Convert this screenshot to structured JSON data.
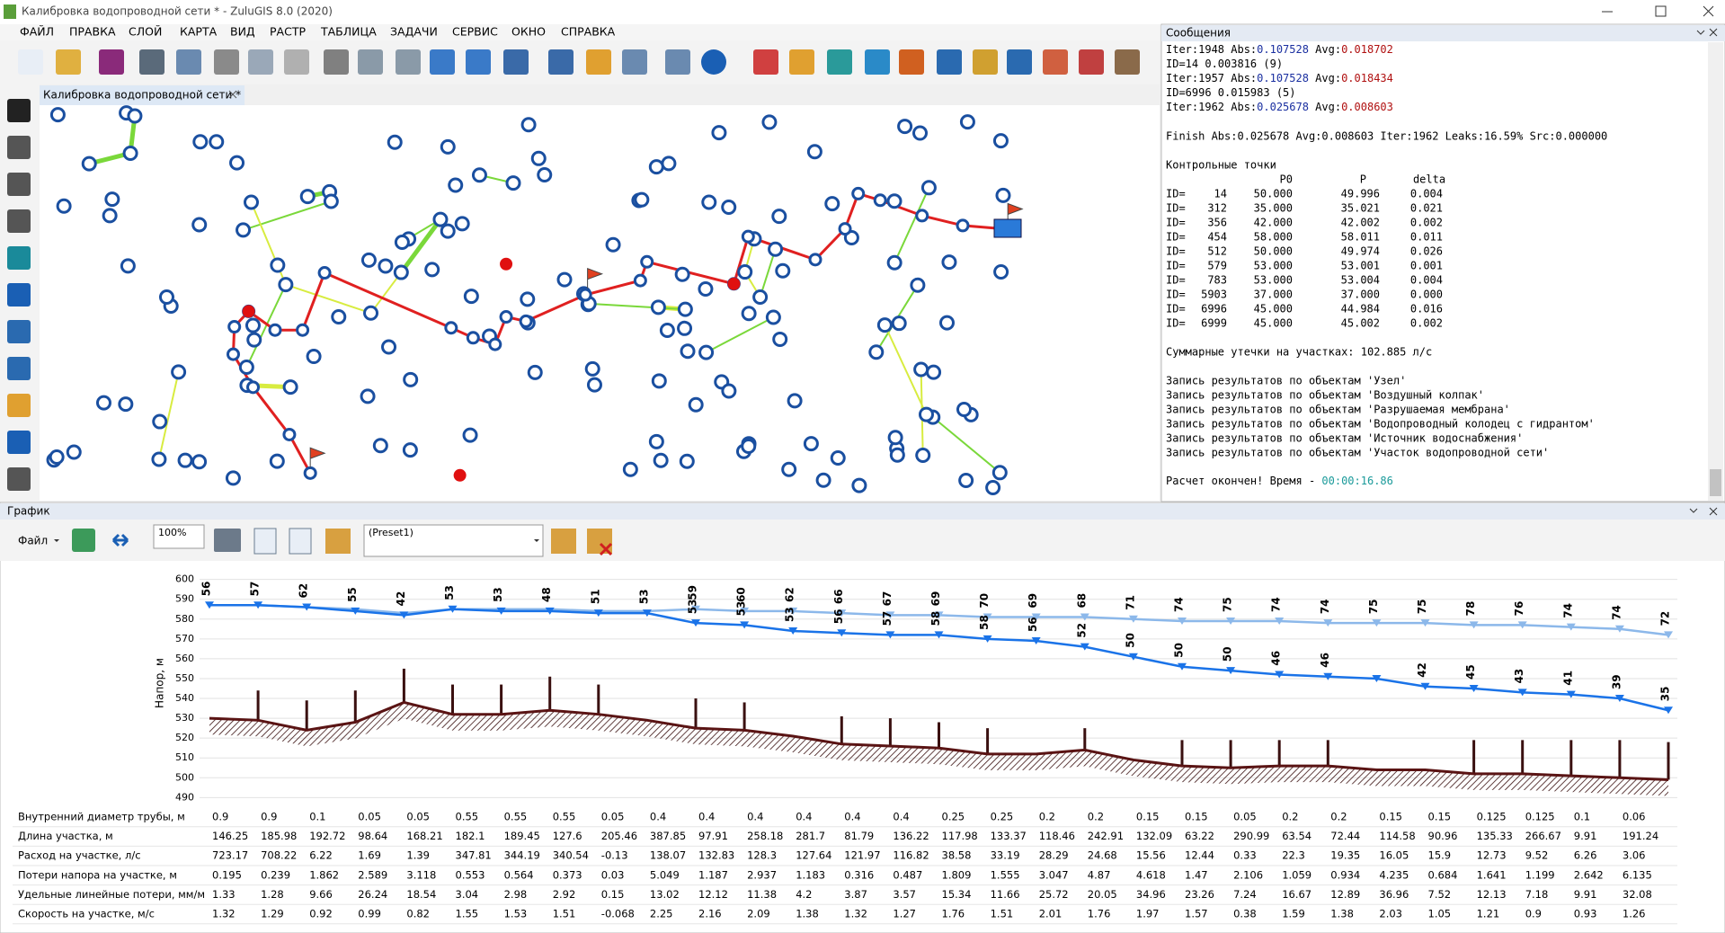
{
  "window": {
    "title": "Калибровка водопроводной сети * - ZuluGIS 8.0 (2020)"
  },
  "menu": [
    "ФАЙЛ",
    "ПРАВКА",
    "СЛОЙ",
    "КАРТА",
    "ВИД",
    "РАСТР",
    "ТАБЛИЦА",
    "ЗАДАЧИ",
    "СЕРВИС",
    "ОКНО",
    "СПРАВКА"
  ],
  "tab_title": "Калибровка водопроводной сети *",
  "messages": {
    "title": "Сообщения",
    "iterations": [
      [
        {
          "t": "Iter:1948 Abs:"
        },
        {
          "t": "0.107528",
          "c": "#1a2fa0"
        },
        {
          "t": " Avg:"
        },
        {
          "t": "0.018702",
          "c": "#b01010"
        }
      ],
      [
        {
          "t": "ID=14 0.003816 (9)"
        }
      ],
      [
        {
          "t": "Iter:1957 Abs:"
        },
        {
          "t": "0.107528",
          "c": "#1a2fa0"
        },
        {
          "t": " Avg:"
        },
        {
          "t": "0.018434",
          "c": "#b01010"
        }
      ],
      [
        {
          "t": "ID=6996 0.015983 (5)"
        }
      ],
      [
        {
          "t": "Iter:1962 Abs:"
        },
        {
          "t": "0.025678",
          "c": "#1a2fa0"
        },
        {
          "t": " Avg:"
        },
        {
          "t": "0.008603",
          "c": "#b01010"
        }
      ]
    ],
    "finish": "Finish Abs:0.025678 Avg:0.008603 Iter:1962 Leaks:16.59% Src:0.000000",
    "control": {
      "title": "Контрольные точки",
      "columns": [
        "P0",
        "P",
        "delta"
      ],
      "id_prefix": "ID=",
      "rows": [
        [
          "14",
          "50.000",
          "49.996",
          "0.004"
        ],
        [
          "312",
          "35.000",
          "35.021",
          "0.021"
        ],
        [
          "356",
          "42.000",
          "42.002",
          "0.002"
        ],
        [
          "454",
          "58.000",
          "58.011",
          "0.011"
        ],
        [
          "512",
          "50.000",
          "49.974",
          "0.026"
        ],
        [
          "579",
          "53.000",
          "53.001",
          "0.001"
        ],
        [
          "783",
          "53.000",
          "53.004",
          "0.004"
        ],
        [
          "5903",
          "37.000",
          "37.000",
          "0.000"
        ],
        [
          "6996",
          "45.000",
          "44.984",
          "0.016"
        ],
        [
          "6999",
          "45.000",
          "45.002",
          "0.002"
        ]
      ]
    },
    "leaks": "Суммарные утечки на участках: 102.885 л/с",
    "records": [
      "Запись результатов по объектам 'Узел'",
      "Запись результатов по объектам 'Воздушный колпак'",
      "Запись результатов по объектам 'Разрушаемая мембрана'",
      "Запись результатов по объектам 'Водопроводный колодец с гидрантом'",
      "Запись результатов по объектам 'Источник водоснабжения'",
      "Запись результатов по объектам 'Участок водопроводной сети'"
    ],
    "done": {
      "text": "Расчет окончен! Время - ",
      "time": "00:00:16.86"
    }
  },
  "graph": {
    "title": "График",
    "file": "Файл",
    "zoom": "100%",
    "preset": "(Preset1)"
  },
  "chart_data": {
    "type": "line",
    "y_label": "Напор, м",
    "ylim": [
      487,
      603
    ],
    "yticks": [
      490,
      500,
      510,
      520,
      530,
      540,
      550,
      560,
      570,
      580,
      590,
      600
    ],
    "grid": true,
    "series": [
      {
        "color": "#1a73e8",
        "values": [
          587,
          587,
          586,
          584,
          582,
          585,
          584,
          584,
          583,
          583,
          578,
          577,
          574,
          573,
          572,
          572,
          570,
          569,
          566,
          561,
          556,
          554,
          552,
          551,
          550,
          546,
          545,
          543,
          542,
          540,
          534
        ],
        "point_labels": [
          56,
          57,
          62,
          55,
          42,
          53,
          53,
          48,
          51,
          53,
          53,
          53,
          53,
          56,
          57,
          58,
          58,
          56,
          52,
          50,
          50,
          50,
          46,
          46,
          null,
          42,
          45,
          43,
          41,
          39,
          35
        ]
      },
      {
        "color": "#8cb8ea",
        "values": [
          587,
          587,
          586,
          585,
          583,
          585,
          585,
          585,
          584,
          584,
          585,
          584,
          584,
          583,
          582,
          582,
          581,
          581,
          581,
          580,
          579,
          579,
          579,
          578,
          578,
          578,
          577,
          577,
          576,
          575,
          572
        ],
        "point_labels": [
          null,
          null,
          null,
          null,
          null,
          null,
          null,
          null,
          null,
          null,
          59,
          60,
          62,
          66,
          67,
          69,
          70,
          69,
          68,
          71,
          74,
          75,
          74,
          74,
          75,
          75,
          78,
          76,
          74,
          74,
          72
        ]
      }
    ],
    "ground": {
      "color": "#5a1414",
      "values": [
        530,
        529,
        524,
        528,
        538,
        532,
        532,
        534,
        532,
        529,
        525,
        524,
        521,
        517,
        516,
        515,
        512,
        512,
        514,
        509,
        506,
        505,
        506,
        506,
        504,
        504,
        502,
        502,
        501,
        500,
        499
      ]
    },
    "stems": {
      "color": "#3a1010",
      "values": [
        null,
        544,
        539,
        544,
        555,
        547,
        547,
        551,
        547,
        null,
        540,
        538,
        null,
        531,
        530,
        528,
        525,
        null,
        525,
        null,
        519,
        519,
        519,
        519,
        null,
        null,
        519,
        519,
        519,
        519,
        518
      ]
    }
  },
  "profile_table": {
    "rows": [
      {
        "label": "Внутренний диаметр трубы, м",
        "values": [
          0.9,
          0.9,
          0.1,
          0.05,
          0.05,
          0.55,
          0.55,
          0.55,
          0.05,
          0.4,
          0.4,
          0.4,
          0.4,
          0.4,
          0.4,
          0.25,
          0.25,
          0.2,
          0.2,
          0.15,
          0.15,
          0.05,
          0.2,
          0.2,
          0.15,
          0.15,
          0.125,
          0.125,
          0.1,
          0.06
        ]
      },
      {
        "label": "Длина участка, м",
        "values": [
          146.25,
          185.98,
          192.72,
          98.64,
          168.21,
          182.1,
          189.45,
          127.6,
          205.46,
          387.85,
          97.91,
          258.18,
          281.7,
          81.79,
          136.22,
          117.98,
          133.37,
          118.46,
          242.91,
          132.09,
          63.22,
          290.99,
          63.54,
          72.44,
          114.58,
          90.96,
          135.33,
          266.67,
          9.91,
          191.24
        ]
      },
      {
        "label": "Расход на участке, л/с",
        "values": [
          723.17,
          708.22,
          6.22,
          1.69,
          1.39,
          347.81,
          344.19,
          340.54,
          -0.13,
          138.07,
          132.83,
          128.3,
          127.64,
          121.97,
          116.82,
          38.58,
          33.19,
          28.29,
          24.68,
          15.56,
          12.44,
          0.33,
          22.3,
          19.35,
          16.05,
          15.9,
          12.73,
          9.52,
          6.26,
          3.06
        ]
      },
      {
        "label": "Потери напора на участке, м",
        "values": [
          0.195,
          0.239,
          1.862,
          2.589,
          3.118,
          0.553,
          0.564,
          0.373,
          0.03,
          5.049,
          1.187,
          2.937,
          1.183,
          0.316,
          0.487,
          1.809,
          1.555,
          3.047,
          4.87,
          4.618,
          1.47,
          2.106,
          1.059,
          0.934,
          4.235,
          0.684,
          1.641,
          1.199,
          2.642,
          6.135
        ]
      },
      {
        "label": "Удельные линейные потери, мм/м",
        "values": [
          1.33,
          1.28,
          9.66,
          26.24,
          18.54,
          3.04,
          2.98,
          2.92,
          0.15,
          13.02,
          12.12,
          11.38,
          4.2,
          3.87,
          3.57,
          15.34,
          11.66,
          25.72,
          20.05,
          34.96,
          23.26,
          7.24,
          16.67,
          12.89,
          36.96,
          7.52,
          12.13,
          7.18,
          9.91,
          32.08
        ]
      },
      {
        "label": "Скорость на участке, м/с",
        "values": [
          1.32,
          1.29,
          0.92,
          0.99,
          0.82,
          1.55,
          1.53,
          1.51,
          -0.068,
          2.25,
          2.16,
          2.09,
          1.38,
          1.32,
          1.27,
          1.76,
          1.51,
          2.01,
          1.76,
          1.97,
          1.57,
          0.38,
          1.59,
          1.38,
          2.03,
          1.05,
          1.21,
          0.9,
          0.93,
          1.26
        ]
      }
    ]
  }
}
